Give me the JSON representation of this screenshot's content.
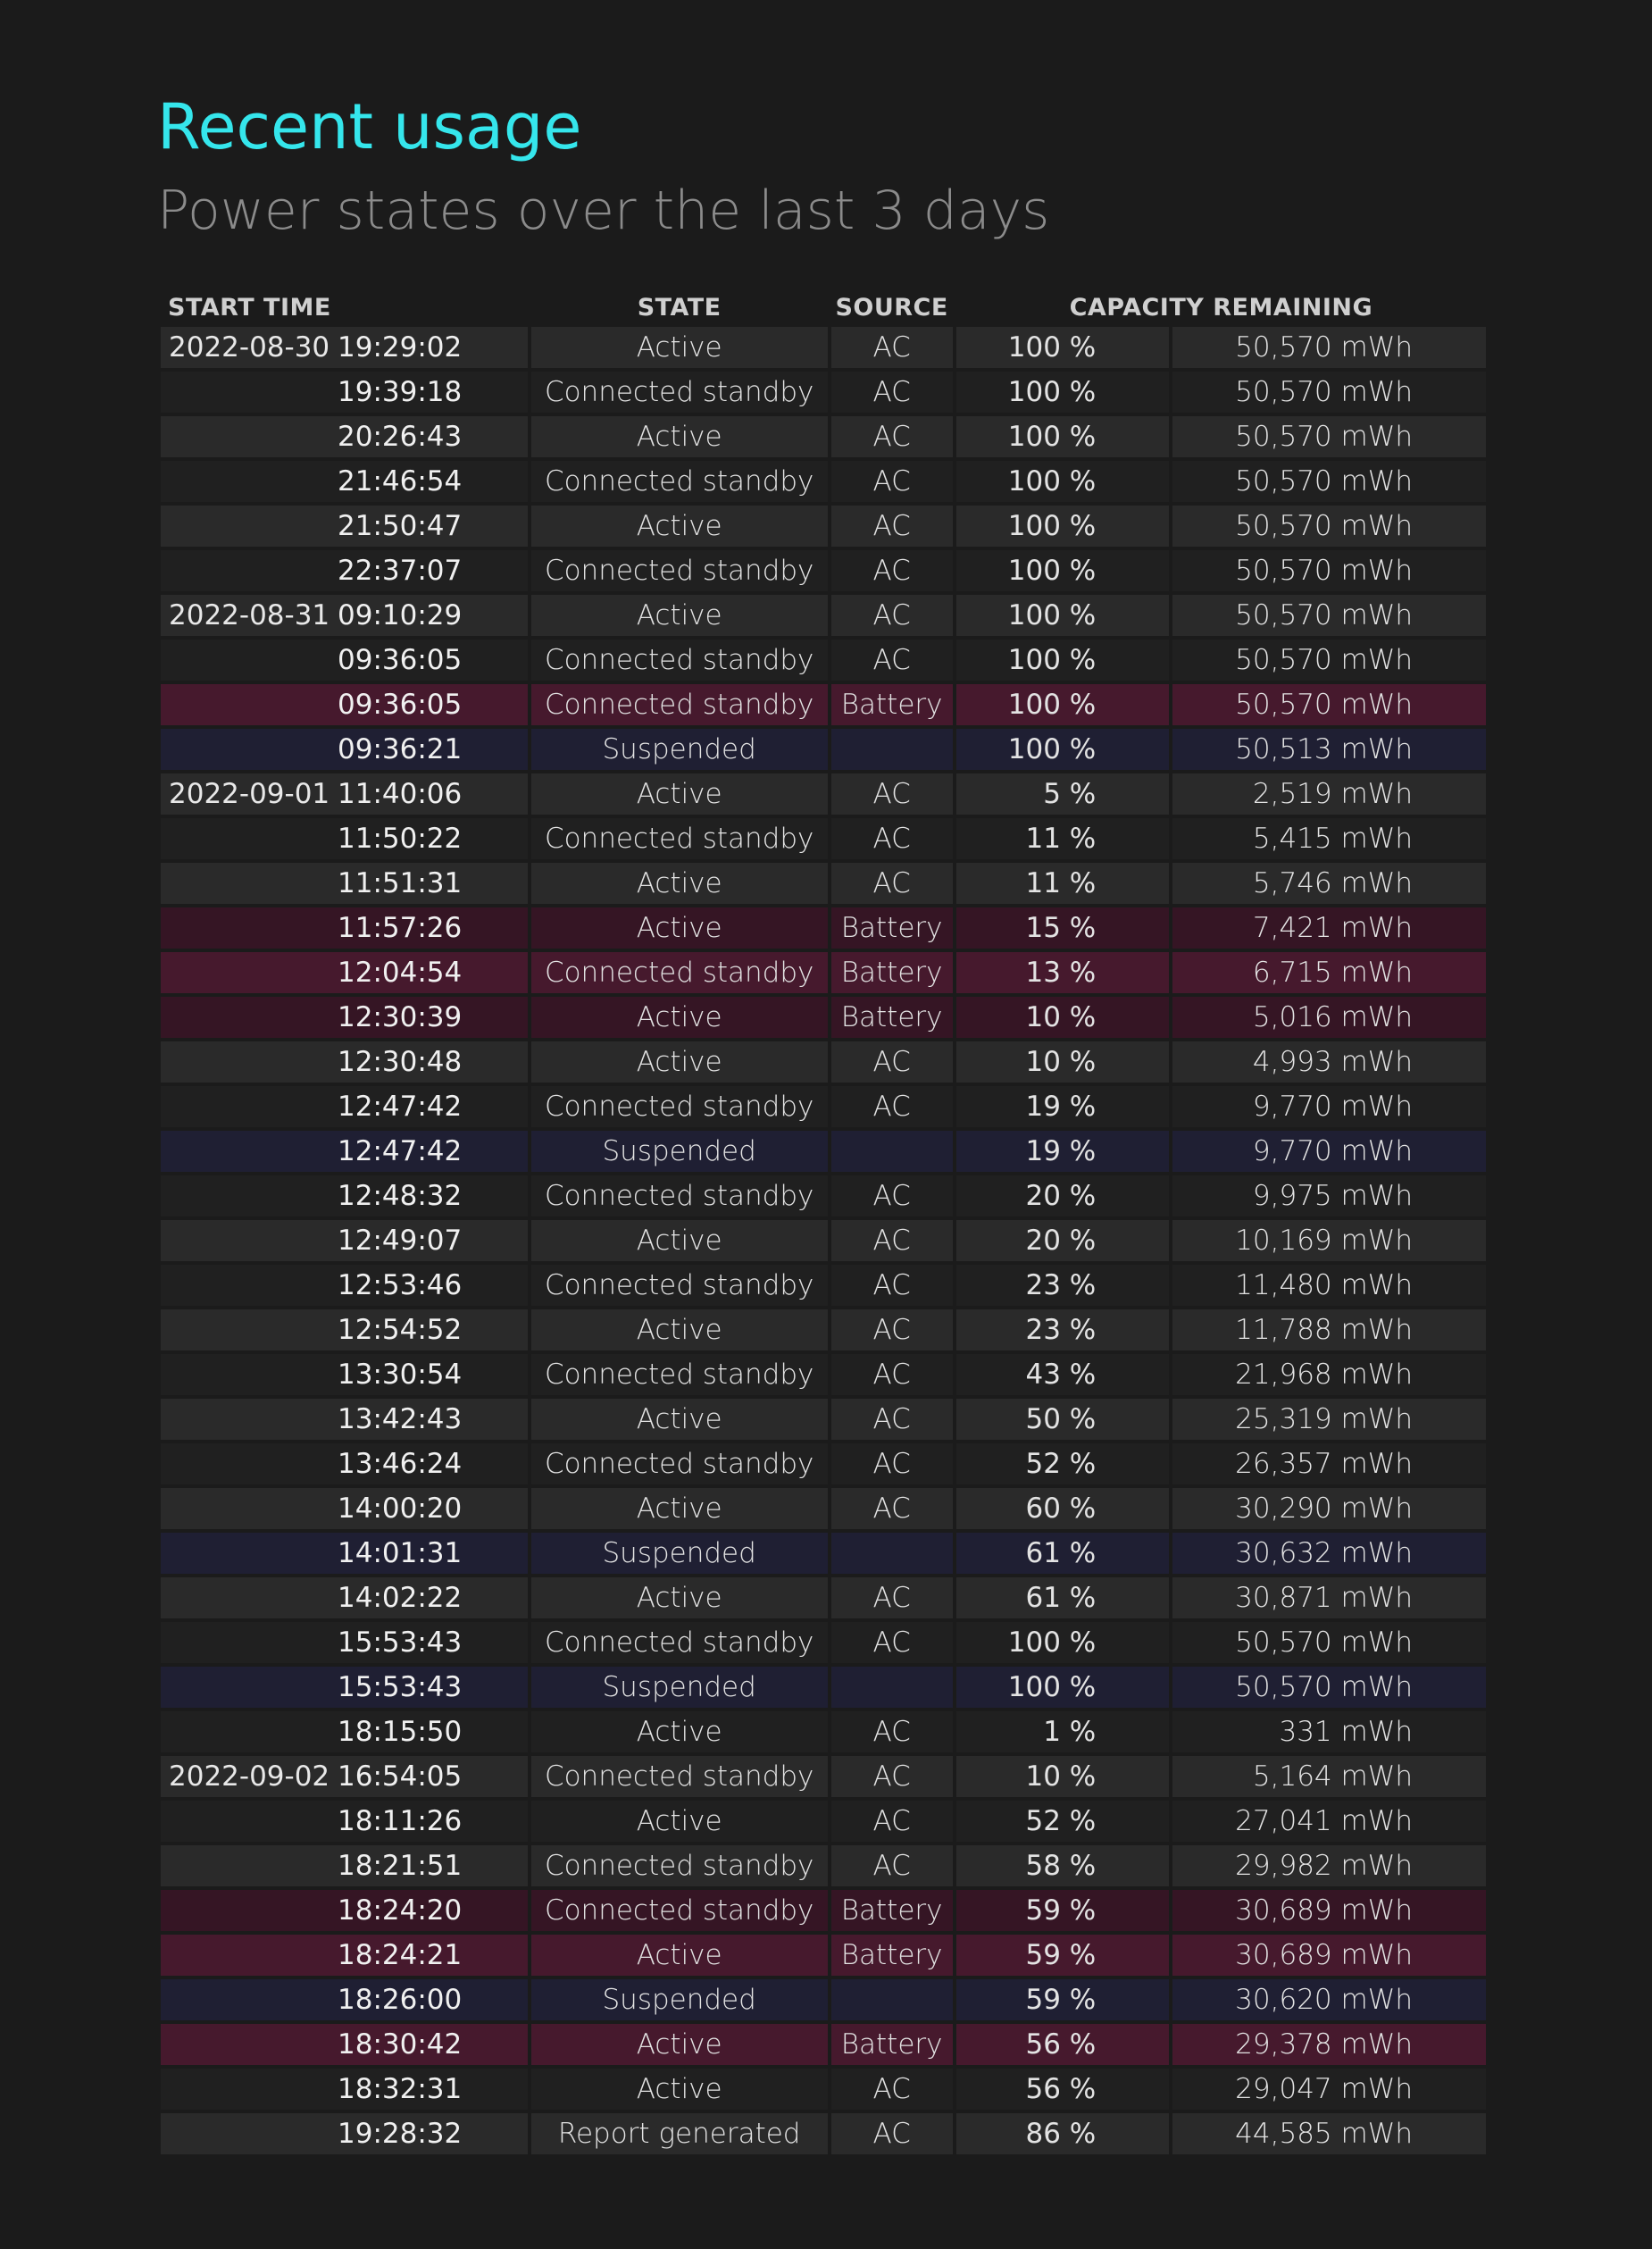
{
  "header": {
    "title": "Recent usage",
    "subtitle": "Power states over the last 3 days"
  },
  "table": {
    "columns": {
      "start_time": "START TIME",
      "state": "STATE",
      "source": "SOURCE",
      "capacity": "CAPACITY REMAINING"
    },
    "rows": [
      {
        "date": "2022-08-30",
        "time": "19:29:02",
        "state": "Active",
        "source": "AC",
        "percent": "100 %",
        "mwh": "50,570 mWh"
      },
      {
        "date": "",
        "time": "19:39:18",
        "state": "Connected standby",
        "source": "AC",
        "percent": "100 %",
        "mwh": "50,570 mWh"
      },
      {
        "date": "",
        "time": "20:26:43",
        "state": "Active",
        "source": "AC",
        "percent": "100 %",
        "mwh": "50,570 mWh"
      },
      {
        "date": "",
        "time": "21:46:54",
        "state": "Connected standby",
        "source": "AC",
        "percent": "100 %",
        "mwh": "50,570 mWh"
      },
      {
        "date": "",
        "time": "21:50:47",
        "state": "Active",
        "source": "AC",
        "percent": "100 %",
        "mwh": "50,570 mWh"
      },
      {
        "date": "",
        "time": "22:37:07",
        "state": "Connected standby",
        "source": "AC",
        "percent": "100 %",
        "mwh": "50,570 mWh"
      },
      {
        "date": "2022-08-31",
        "time": "09:10:29",
        "state": "Active",
        "source": "AC",
        "percent": "100 %",
        "mwh": "50,570 mWh"
      },
      {
        "date": "",
        "time": "09:36:05",
        "state": "Connected standby",
        "source": "AC",
        "percent": "100 %",
        "mwh": "50,570 mWh"
      },
      {
        "date": "",
        "time": "09:36:05",
        "state": "Connected standby",
        "source": "Battery",
        "percent": "100 %",
        "mwh": "50,570 mWh"
      },
      {
        "date": "",
        "time": "09:36:21",
        "state": "Suspended",
        "source": "",
        "percent": "100 %",
        "mwh": "50,513 mWh"
      },
      {
        "date": "2022-09-01",
        "time": "11:40:06",
        "state": "Active",
        "source": "AC",
        "percent": "5 %",
        "mwh": "2,519 mWh"
      },
      {
        "date": "",
        "time": "11:50:22",
        "state": "Connected standby",
        "source": "AC",
        "percent": "11 %",
        "mwh": "5,415 mWh"
      },
      {
        "date": "",
        "time": "11:51:31",
        "state": "Active",
        "source": "AC",
        "percent": "11 %",
        "mwh": "5,746 mWh"
      },
      {
        "date": "",
        "time": "11:57:26",
        "state": "Active",
        "source": "Battery",
        "percent": "15 %",
        "mwh": "7,421 mWh"
      },
      {
        "date": "",
        "time": "12:04:54",
        "state": "Connected standby",
        "source": "Battery",
        "percent": "13 %",
        "mwh": "6,715 mWh"
      },
      {
        "date": "",
        "time": "12:30:39",
        "state": "Active",
        "source": "Battery",
        "percent": "10 %",
        "mwh": "5,016 mWh"
      },
      {
        "date": "",
        "time": "12:30:48",
        "state": "Active",
        "source": "AC",
        "percent": "10 %",
        "mwh": "4,993 mWh"
      },
      {
        "date": "",
        "time": "12:47:42",
        "state": "Connected standby",
        "source": "AC",
        "percent": "19 %",
        "mwh": "9,770 mWh"
      },
      {
        "date": "",
        "time": "12:47:42",
        "state": "Suspended",
        "source": "",
        "percent": "19 %",
        "mwh": "9,770 mWh"
      },
      {
        "date": "",
        "time": "12:48:32",
        "state": "Connected standby",
        "source": "AC",
        "percent": "20 %",
        "mwh": "9,975 mWh"
      },
      {
        "date": "",
        "time": "12:49:07",
        "state": "Active",
        "source": "AC",
        "percent": "20 %",
        "mwh": "10,169 mWh"
      },
      {
        "date": "",
        "time": "12:53:46",
        "state": "Connected standby",
        "source": "AC",
        "percent": "23 %",
        "mwh": "11,480 mWh"
      },
      {
        "date": "",
        "time": "12:54:52",
        "state": "Active",
        "source": "AC",
        "percent": "23 %",
        "mwh": "11,788 mWh"
      },
      {
        "date": "",
        "time": "13:30:54",
        "state": "Connected standby",
        "source": "AC",
        "percent": "43 %",
        "mwh": "21,968 mWh"
      },
      {
        "date": "",
        "time": "13:42:43",
        "state": "Active",
        "source": "AC",
        "percent": "50 %",
        "mwh": "25,319 mWh"
      },
      {
        "date": "",
        "time": "13:46:24",
        "state": "Connected standby",
        "source": "AC",
        "percent": "52 %",
        "mwh": "26,357 mWh"
      },
      {
        "date": "",
        "time": "14:00:20",
        "state": "Active",
        "source": "AC",
        "percent": "60 %",
        "mwh": "30,290 mWh"
      },
      {
        "date": "",
        "time": "14:01:31",
        "state": "Suspended",
        "source": "",
        "percent": "61 %",
        "mwh": "30,632 mWh"
      },
      {
        "date": "",
        "time": "14:02:22",
        "state": "Active",
        "source": "AC",
        "percent": "61 %",
        "mwh": "30,871 mWh"
      },
      {
        "date": "",
        "time": "15:53:43",
        "state": "Connected standby",
        "source": "AC",
        "percent": "100 %",
        "mwh": "50,570 mWh"
      },
      {
        "date": "",
        "time": "15:53:43",
        "state": "Suspended",
        "source": "",
        "percent": "100 %",
        "mwh": "50,570 mWh"
      },
      {
        "date": "",
        "time": "18:15:50",
        "state": "Active",
        "source": "AC",
        "percent": "1 %",
        "mwh": "331 mWh"
      },
      {
        "date": "2022-09-02",
        "time": "16:54:05",
        "state": "Connected standby",
        "source": "AC",
        "percent": "10 %",
        "mwh": "5,164 mWh"
      },
      {
        "date": "",
        "time": "18:11:26",
        "state": "Active",
        "source": "AC",
        "percent": "52 %",
        "mwh": "27,041 mWh"
      },
      {
        "date": "",
        "time": "18:21:51",
        "state": "Connected standby",
        "source": "AC",
        "percent": "58 %",
        "mwh": "29,982 mWh"
      },
      {
        "date": "",
        "time": "18:24:20",
        "state": "Connected standby",
        "source": "Battery",
        "percent": "59 %",
        "mwh": "30,689 mWh"
      },
      {
        "date": "",
        "time": "18:24:21",
        "state": "Active",
        "source": "Battery",
        "percent": "59 %",
        "mwh": "30,689 mWh"
      },
      {
        "date": "",
        "time": "18:26:00",
        "state": "Suspended",
        "source": "",
        "percent": "59 %",
        "mwh": "30,620 mWh"
      },
      {
        "date": "",
        "time": "18:30:42",
        "state": "Active",
        "source": "Battery",
        "percent": "56 %",
        "mwh": "29,378 mWh"
      },
      {
        "date": "",
        "time": "18:32:31",
        "state": "Active",
        "source": "AC",
        "percent": "56 %",
        "mwh": "29,047 mWh"
      },
      {
        "date": "",
        "time": "19:28:32",
        "state": "Report generated",
        "source": "AC",
        "percent": "86 %",
        "mwh": "44,585 mWh"
      }
    ]
  },
  "colors": {
    "background": "#1b1b1b",
    "title": "#35e6ec",
    "subtitle": "#8b8b8b",
    "row_ac_odd": "#2a2a2a",
    "row_ac_even": "#202020",
    "row_battery_odd": "#46192d",
    "row_battery_even": "#351524",
    "row_suspended": "#1f1f33"
  }
}
